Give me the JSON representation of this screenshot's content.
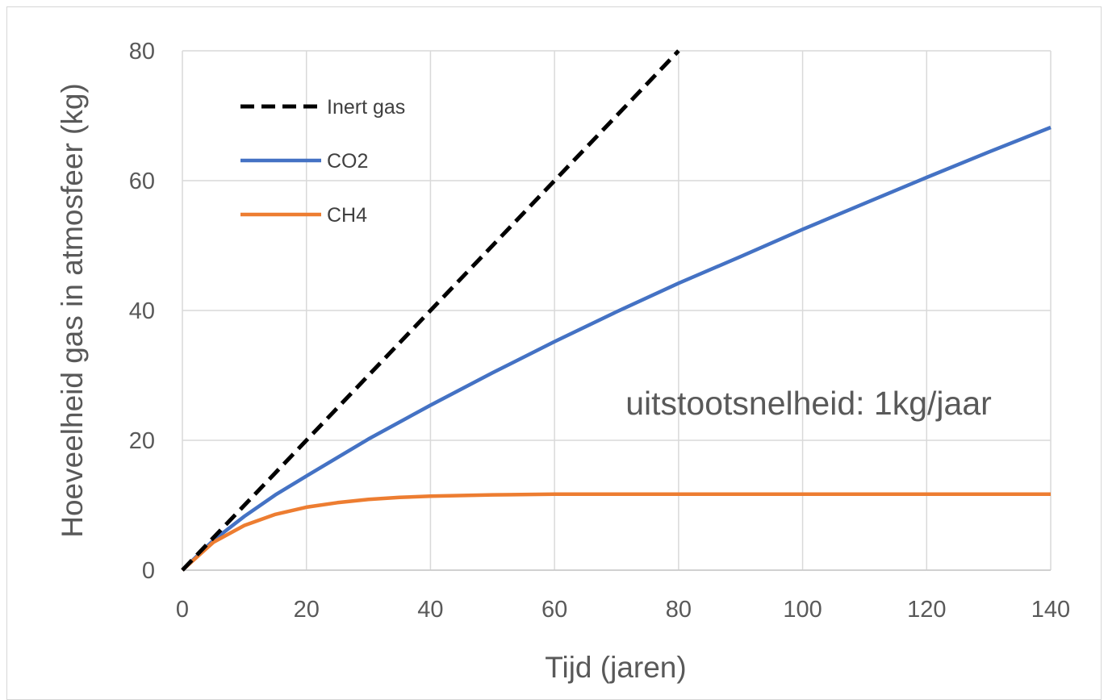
{
  "chart_data": {
    "type": "line",
    "xlabel": "Tijd (jaren)",
    "ylabel": "Hoeveelheid gas in atmosfeer (kg)",
    "xlim": [
      0,
      140
    ],
    "ylim": [
      0,
      80
    ],
    "xticks": [
      0,
      20,
      40,
      60,
      80,
      100,
      120,
      140
    ],
    "yticks": [
      0,
      20,
      40,
      60,
      80
    ],
    "grid": true,
    "legend_position": "top-left",
    "annotation": "uitstootsnelheid: 1kg/jaar",
    "series": [
      {
        "name": "Inert gas",
        "color": "#000000",
        "dash": "dashed",
        "x": [
          0,
          80
        ],
        "y": [
          0,
          80
        ]
      },
      {
        "name": "CO2",
        "color": "#4472C4",
        "dash": "solid",
        "x": [
          0,
          5,
          10,
          15,
          20,
          30,
          40,
          50,
          60,
          70,
          80,
          90,
          100,
          110,
          120,
          130,
          140
        ],
        "y": [
          0,
          4.6,
          8.3,
          11.6,
          14.5,
          20.2,
          25.4,
          30.4,
          35.2,
          39.8,
          44.2,
          48.3,
          52.5,
          56.5,
          60.5,
          64.4,
          68.2
        ]
      },
      {
        "name": "CH4",
        "color": "#ED7D31",
        "dash": "solid",
        "x": [
          0,
          5,
          10,
          15,
          20,
          25,
          30,
          35,
          40,
          50,
          60,
          80,
          100,
          120,
          140
        ],
        "y": [
          0,
          4.3,
          6.9,
          8.6,
          9.7,
          10.4,
          10.9,
          11.2,
          11.4,
          11.6,
          11.7,
          11.7,
          11.7,
          11.7,
          11.7
        ]
      }
    ]
  }
}
